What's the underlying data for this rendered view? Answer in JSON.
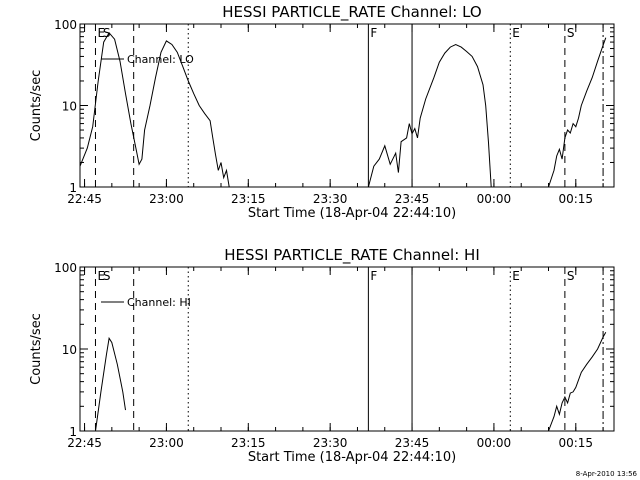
{
  "footer_stamp": "8-Apr-2010 13:56",
  "chart_data": [
    {
      "type": "line",
      "title": "HESSI PARTICLE_RATE Channel: LO",
      "xlabel": "Start Time (18-Apr-04 22:44:10)",
      "ylabel": "Counts/sec",
      "y_scale": "log",
      "ylim": [
        1,
        100
      ],
      "xlim": [
        "22:44:10",
        "00:22"
      ],
      "y_ticks": [
        "1",
        "10",
        "100"
      ],
      "x_ticks": [
        "22:45",
        "23:00",
        "23:15",
        "23:30",
        "23:45",
        "00:00",
        "00:15"
      ],
      "legend": "Channel: LO",
      "legend_position": "top-left",
      "markers": [
        {
          "label": "E",
          "time": "22:47",
          "style": "dashed",
          "show_label": true
        },
        {
          "label": "S",
          "time": "22:48",
          "style": "none",
          "show_label": true
        },
        {
          "label": "",
          "time": "22:54",
          "style": "dashed",
          "show_label": false
        },
        {
          "label": "",
          "time": "23:04",
          "style": "dotted",
          "show_label": false
        },
        {
          "label": "F",
          "time": "23:37",
          "style": "solid",
          "show_label": true
        },
        {
          "label": "",
          "time": "23:45",
          "style": "solid",
          "show_label": false
        },
        {
          "label": "E",
          "time": "00:03",
          "style": "dotted",
          "show_label": true
        },
        {
          "label": "S",
          "time": "00:13",
          "style": "dashed",
          "show_label": true
        },
        {
          "label": "",
          "time": "00:20",
          "style": "dashdot",
          "show_label": false
        }
      ],
      "series": [
        {
          "segments": [
            [
              [
                "22:44:10",
                1.8
              ],
              [
                "22:45:30",
                3.0
              ],
              [
                "22:46:30",
                5.5
              ],
              [
                "22:47:30",
                20
              ],
              [
                "22:48:30",
                60
              ],
              [
                "22:49:30",
                78
              ],
              [
                "22:50:30",
                65
              ],
              [
                "22:51:30",
                35
              ],
              [
                "22:52:30",
                14
              ],
              [
                "22:53:30",
                6
              ],
              [
                "22:54:30",
                2.8
              ],
              [
                "22:55:00",
                1.9
              ],
              [
                "22:55:30",
                2.2
              ],
              [
                "22:56:00",
                5
              ],
              [
                "22:57:00",
                10
              ],
              [
                "22:58:00",
                22
              ],
              [
                "22:59:00",
                45
              ],
              [
                "23:00:00",
                62
              ],
              [
                "23:01:00",
                56
              ],
              [
                "23:02:00",
                45
              ],
              [
                "23:03:00",
                30
              ],
              [
                "23:04:00",
                20
              ],
              [
                "23:05:00",
                14
              ],
              [
                "23:06:00",
                10
              ],
              [
                "23:07:00",
                8
              ],
              [
                "23:08:00",
                6.5
              ],
              [
                "23:08:30",
                4
              ],
              [
                "23:09:00",
                2.5
              ],
              [
                "23:09:30",
                1.6
              ],
              [
                "23:10:00",
                2
              ],
              [
                "23:10:30",
                1.3
              ],
              [
                "23:11:00",
                1.6
              ],
              [
                "23:11:30",
                1
              ]
            ],
            [
              [
                "23:37:00",
                1
              ],
              [
                "23:38:00",
                1.8
              ],
              [
                "23:39:00",
                2.2
              ],
              [
                "23:40:00",
                3.2
              ],
              [
                "23:41:00",
                1.9
              ],
              [
                "23:42:00",
                2.6
              ],
              [
                "23:42:30",
                1.5
              ],
              [
                "23:43:00",
                3.6
              ],
              [
                "23:44:00",
                4
              ],
              [
                "23:44:30",
                6
              ],
              [
                "23:45:00",
                4.5
              ],
              [
                "23:45:30",
                5.2
              ],
              [
                "23:46:00",
                4
              ],
              [
                "23:46:30",
                7
              ],
              [
                "23:47:30",
                12
              ],
              [
                "23:49:00",
                22
              ],
              [
                "23:50:00",
                34
              ],
              [
                "23:51:00",
                44
              ],
              [
                "23:52:00",
                52
              ],
              [
                "23:53:00",
                56
              ],
              [
                "23:54:00",
                52
              ],
              [
                "23:55:00",
                46
              ],
              [
                "23:56:00",
                40
              ],
              [
                "23:57:00",
                30
              ],
              [
                "23:58:00",
                18
              ],
              [
                "23:58:30",
                10
              ],
              [
                "23:59:00",
                3.5
              ],
              [
                "23:59:30",
                1
              ]
            ],
            [
              [
                "00:10:00",
                1
              ],
              [
                "00:11:00",
                1.6
              ],
              [
                "00:11:30",
                2.4
              ],
              [
                "00:12:00",
                2.9
              ],
              [
                "00:12:30",
                2.2
              ],
              [
                "00:13:00",
                4
              ],
              [
                "00:13:30",
                5
              ],
              [
                "00:14:00",
                4.6
              ],
              [
                "00:14:30",
                6
              ],
              [
                "00:15:00",
                5.5
              ],
              [
                "00:15:30",
                7
              ],
              [
                "00:16:00",
                10
              ],
              [
                "00:17:00",
                15
              ],
              [
                "00:18:00",
                22
              ],
              [
                "00:19:00",
                35
              ],
              [
                "00:20:00",
                55
              ],
              [
                "00:20:30",
                68
              ]
            ]
          ]
        }
      ]
    },
    {
      "type": "line",
      "title": "HESSI PARTICLE_RATE Channel: HI",
      "xlabel": "Start Time (18-Apr-04 22:44:10)",
      "ylabel": "Counts/sec",
      "y_scale": "log",
      "ylim": [
        1,
        100
      ],
      "xlim": [
        "22:44:10",
        "00:22"
      ],
      "y_ticks": [
        "1",
        "10",
        "100"
      ],
      "x_ticks": [
        "22:45",
        "23:00",
        "23:15",
        "23:30",
        "23:45",
        "00:00",
        "00:15"
      ],
      "legend": "Channel: HI",
      "legend_position": "top-left",
      "markers": [
        {
          "label": "E",
          "time": "22:47",
          "style": "dashed",
          "show_label": true
        },
        {
          "label": "S",
          "time": "22:48",
          "style": "none",
          "show_label": true
        },
        {
          "label": "",
          "time": "22:54",
          "style": "dashed",
          "show_label": false
        },
        {
          "label": "",
          "time": "23:04",
          "style": "dotted",
          "show_label": false
        },
        {
          "label": "F",
          "time": "23:37",
          "style": "solid",
          "show_label": true
        },
        {
          "label": "",
          "time": "23:45",
          "style": "solid",
          "show_label": false
        },
        {
          "label": "E",
          "time": "00:03",
          "style": "dotted",
          "show_label": true
        },
        {
          "label": "S",
          "time": "00:13",
          "style": "dashed",
          "show_label": true
        },
        {
          "label": "",
          "time": "00:20",
          "style": "dashdot",
          "show_label": false
        }
      ],
      "series": [
        {
          "segments": [
            [
              [
                "22:47:00",
                1
              ],
              [
                "22:48:00",
                3
              ],
              [
                "22:49:00",
                8.5
              ],
              [
                "22:49:30",
                13.5
              ],
              [
                "22:50:00",
                12
              ],
              [
                "22:51:00",
                6.5
              ],
              [
                "22:52:00",
                3
              ],
              [
                "22:52:30",
                1.8
              ]
            ],
            [
              [
                "00:10:00",
                1
              ],
              [
                "00:11:00",
                1.5
              ],
              [
                "00:11:30",
                2
              ],
              [
                "00:12:00",
                1.6
              ],
              [
                "00:12:30",
                2.2
              ],
              [
                "00:13:00",
                2.6
              ],
              [
                "00:13:30",
                2.2
              ],
              [
                "00:14:00",
                2.9
              ],
              [
                "00:14:30",
                3
              ],
              [
                "00:15:00",
                3.4
              ],
              [
                "00:16:00",
                5.2
              ],
              [
                "00:17:00",
                6.5
              ],
              [
                "00:18:00",
                8
              ],
              [
                "00:19:00",
                10
              ],
              [
                "00:20:00",
                14
              ],
              [
                "00:20:30",
                16
              ]
            ]
          ]
        }
      ]
    }
  ]
}
